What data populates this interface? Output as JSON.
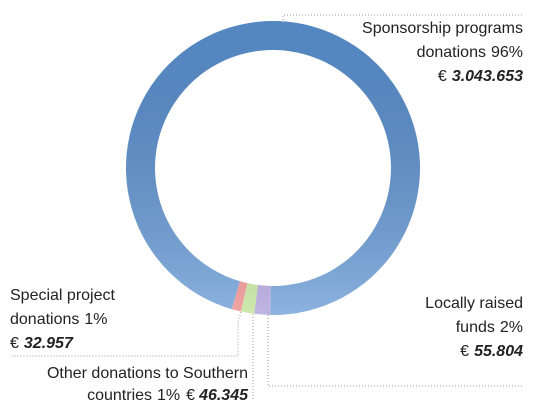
{
  "chart_data": {
    "type": "donut",
    "categories": [
      [
        "Locally raised",
        "funds"
      ],
      [
        "Other donations to Southern",
        "countries"
      ],
      [
        "Special project",
        "donations"
      ],
      [
        "Sponsorship programs",
        "donations"
      ]
    ],
    "values": [
      55804,
      46345,
      32957,
      3043653
    ],
    "value_labels": [
      "55.804",
      "46.345",
      "32.957",
      "3.043.653"
    ],
    "percent_labels": [
      "2%",
      "1%",
      "1%",
      "96%"
    ],
    "currency": "€",
    "colors": [
      "#a495d6",
      "#b9de8c",
      "#ea7f7f",
      "#5b92d2"
    ]
  }
}
